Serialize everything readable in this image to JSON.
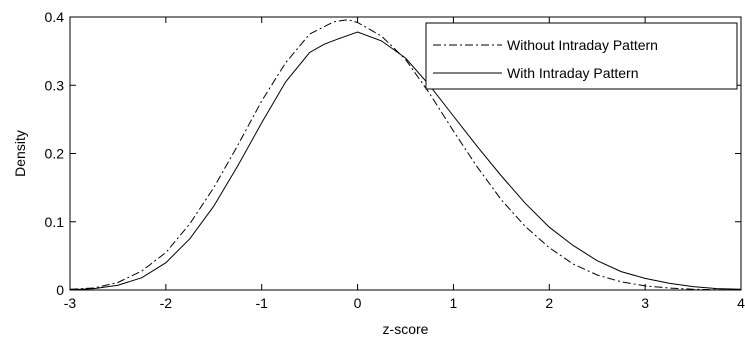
{
  "chart_data": {
    "type": "line",
    "xlabel": "z-score",
    "ylabel": "Density",
    "xlim": [
      -3,
      4
    ],
    "ylim": [
      0,
      0.4
    ],
    "xticks": [
      -3,
      -2,
      -1,
      0,
      1,
      2,
      3,
      4
    ],
    "yticks": [
      0,
      0.1,
      0.2,
      0.3,
      0.4
    ],
    "xtick_labels": [
      "-3",
      "-2",
      "-1",
      "0",
      "1",
      "2",
      "3",
      "4"
    ],
    "ytick_labels": [
      "0",
      "0.1",
      "0.2",
      "0.3",
      "0.4"
    ],
    "grid": false,
    "legend_position": "top-right",
    "series": [
      {
        "name": "Without Intraday Pattern",
        "style": "dash-dot",
        "color": "#000000",
        "x": [
          -3,
          -2.75,
          -2.5,
          -2.25,
          -2,
          -1.75,
          -1.5,
          -1.25,
          -1,
          -0.75,
          -0.5,
          -0.25,
          -0.1,
          0,
          0.25,
          0.5,
          0.75,
          1,
          1.25,
          1.5,
          1.75,
          2,
          2.25,
          2.5,
          2.75,
          3,
          3.25,
          3.5,
          3.75,
          4
        ],
        "y": [
          0.001,
          0.003,
          0.011,
          0.028,
          0.055,
          0.097,
          0.15,
          0.212,
          0.277,
          0.333,
          0.375,
          0.393,
          0.396,
          0.392,
          0.372,
          0.338,
          0.288,
          0.233,
          0.18,
          0.132,
          0.093,
          0.062,
          0.038,
          0.022,
          0.012,
          0.006,
          0.003,
          0.001,
          0.0005,
          0.0002
        ]
      },
      {
        "name": "With Intraday Pattern",
        "style": "solid",
        "color": "#000000",
        "x": [
          -3,
          -2.75,
          -2.5,
          -2.25,
          -2,
          -1.75,
          -1.5,
          -1.25,
          -1,
          -0.75,
          -0.5,
          -0.35,
          -0.2,
          0,
          0.25,
          0.5,
          0.75,
          1,
          1.25,
          1.5,
          1.75,
          2,
          2.25,
          2.5,
          2.75,
          3,
          3.25,
          3.5,
          3.75,
          4
        ],
        "y": [
          0.0005,
          0.002,
          0.007,
          0.018,
          0.04,
          0.075,
          0.123,
          0.182,
          0.245,
          0.305,
          0.348,
          0.36,
          0.368,
          0.378,
          0.365,
          0.34,
          0.3,
          0.255,
          0.21,
          0.167,
          0.127,
          0.092,
          0.065,
          0.043,
          0.027,
          0.017,
          0.01,
          0.005,
          0.002,
          0.001
        ]
      }
    ]
  }
}
